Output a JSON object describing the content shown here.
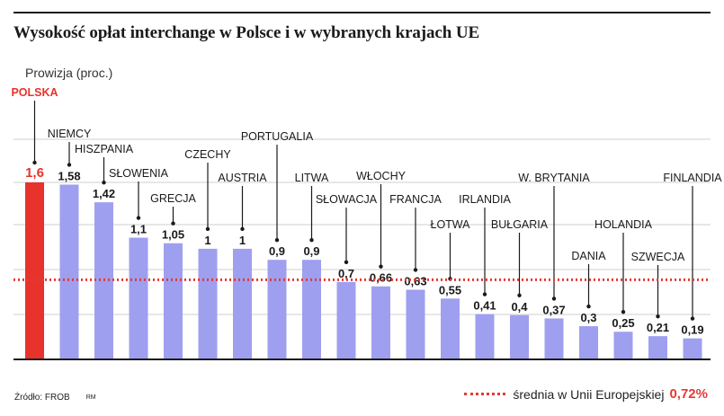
{
  "title": "Wysokość opłat interchange w Polsce i w wybranych krajach UE",
  "subtitle": "Prowizja (proc.)",
  "source": "Źródło: FROB",
  "author": "RM",
  "legend": {
    "label": "średnia w Unii Europejskiej",
    "value": "0,72%"
  },
  "colors": {
    "highlight": "#e8322c",
    "bar": "#9f9ff0",
    "average_line": "#e53935",
    "text": "#1a1a1a"
  },
  "chart_data": {
    "type": "bar",
    "categories": [
      "POLSKA",
      "NIEMCY",
      "HISZPANIA",
      "SŁOWENIA",
      "GRECJA",
      "CZECHY",
      "AUSTRIA",
      "PORTUGALIA",
      "LITWA",
      "SŁOWACJA",
      "WŁOCHY",
      "FRANCJA",
      "ŁOTWA",
      "IRLANDIA",
      "BUŁGARIA",
      "W. BRYTANIA",
      "DANIA",
      "HOLANDIA",
      "SZWECJA",
      "FINLANDIA"
    ],
    "values": [
      1.6,
      1.58,
      1.42,
      1.1,
      1.05,
      1,
      1,
      0.9,
      0.9,
      0.7,
      0.66,
      0.63,
      0.55,
      0.41,
      0.4,
      0.37,
      0.3,
      0.25,
      0.21,
      0.19
    ],
    "value_labels": [
      "1,6",
      "1,58",
      "1,42",
      "1,1",
      "1,05",
      "1",
      "1",
      "0,9",
      "0,9",
      "0,7",
      "0,66",
      "0,63",
      "0,55",
      "0,41",
      "0,4",
      "0,37",
      "0,3",
      "0,25",
      "0,21",
      "0,19"
    ],
    "highlight_index": 0,
    "average": 0.72,
    "ylim": [
      0,
      1.6
    ],
    "grid": true,
    "legend_position": "bottom-right"
  }
}
